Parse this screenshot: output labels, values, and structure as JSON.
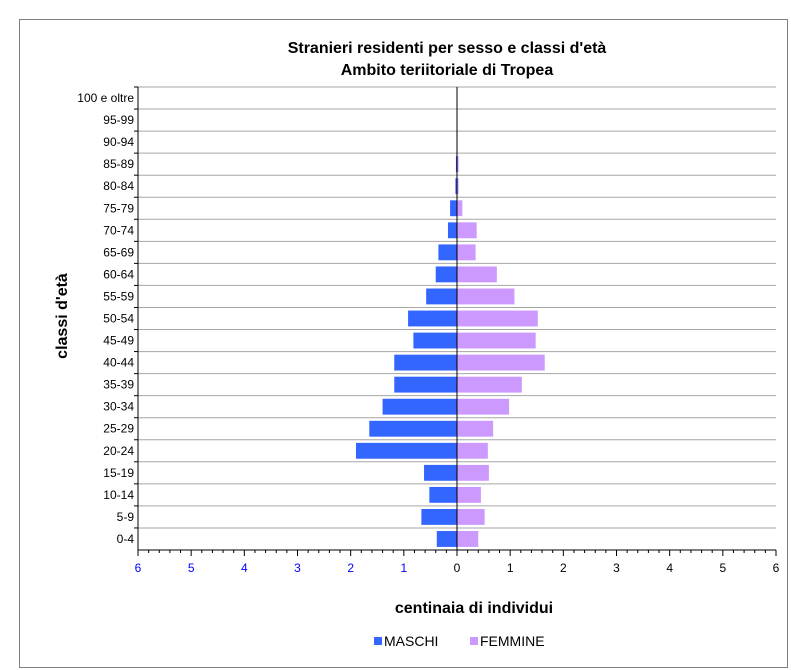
{
  "chart_data": {
    "type": "bar",
    "orientation": "horizontal",
    "title": "Stranieri residenti per sesso e classi d'età",
    "subtitle": "Ambito teriitoriale di Tropea",
    "xlabel": "centinaia di individui",
    "ylabel": "classi d'età",
    "categories": [
      "0-4",
      "5-9",
      "10-14",
      "15-19",
      "20-24",
      "25-29",
      "30-34",
      "35-39",
      "40-44",
      "45-49",
      "50-54",
      "55-59",
      "60-64",
      "65-69",
      "70-74",
      "75-79",
      "80-84",
      "85-89",
      "90-94",
      "95-99",
      "100 e oltre"
    ],
    "series": [
      {
        "name": "MASCHI",
        "color": "#3366ff",
        "values": [
          0.38,
          0.67,
          0.52,
          0.62,
          1.9,
          1.65,
          1.4,
          1.18,
          1.18,
          0.82,
          0.92,
          0.58,
          0.4,
          0.35,
          0.17,
          0.13,
          0.03,
          0.02,
          0.0,
          0.0,
          0.0
        ]
      },
      {
        "name": "FEMMINE",
        "color": "#cc99ff",
        "values": [
          0.4,
          0.52,
          0.45,
          0.6,
          0.58,
          0.68,
          0.98,
          1.22,
          1.65,
          1.48,
          1.52,
          1.08,
          0.75,
          0.35,
          0.37,
          0.1,
          0.03,
          0.03,
          0.01,
          0.0,
          0.01
        ]
      }
    ],
    "xlim": [
      -6,
      6
    ],
    "xticks": [
      "6",
      "5",
      "4",
      "3",
      "2",
      "1",
      "0",
      "1",
      "2",
      "3",
      "4",
      "5",
      "6"
    ],
    "grid": true,
    "legend_position": "bottom"
  }
}
